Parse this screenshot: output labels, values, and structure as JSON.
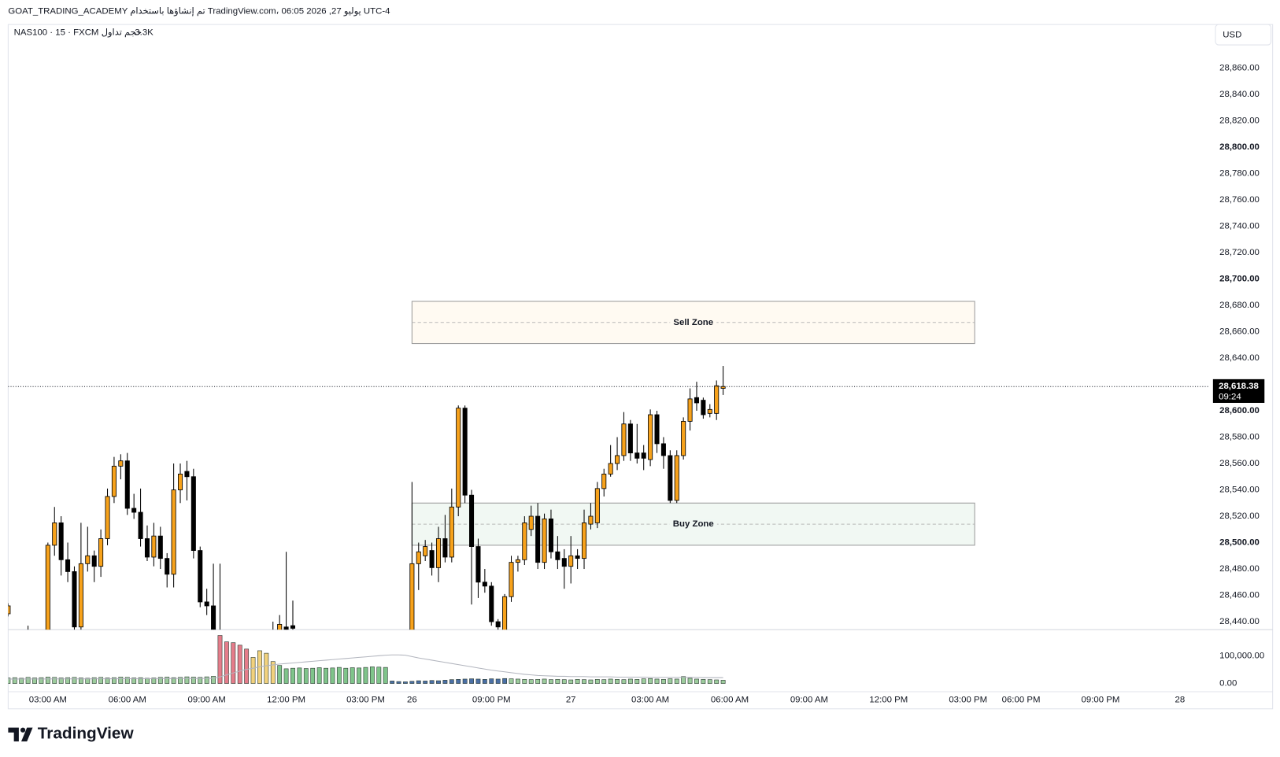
{
  "chart_data": {
    "type": "candlestick",
    "attribution": "GOAT_TRADING_ACADEMY تم إنشاؤها باستخدام TradingView.com، 06:05 2026 ,27 يوليو UTC-4",
    "symbol": "NAS100 · 15 · FXCM",
    "volume_label": "حجم تداول",
    "volume_value": "3.3K",
    "currency": "USD",
    "brand": "TradingView",
    "up_color": "#f7a21b",
    "down_color": "#000000",
    "grid": false,
    "xlim": [
      0,
      181.5
    ],
    "ylim": [
      28434,
      28893
    ],
    "yticks": [
      {
        "value": 28440,
        "label": "28,440.00"
      },
      {
        "value": 28460,
        "label": "28,460.00"
      },
      {
        "value": 28480,
        "label": "28,480.00"
      },
      {
        "value": 28500,
        "label": "28,500.00"
      },
      {
        "value": 28520,
        "label": "28,520.00"
      },
      {
        "value": 28540,
        "label": "28,540.00"
      },
      {
        "value": 28560,
        "label": "28,560.00"
      },
      {
        "value": 28580,
        "label": "28,580.00"
      },
      {
        "value": 28600,
        "label": "28,600.00"
      },
      {
        "value": 28640,
        "label": "28,640.00"
      },
      {
        "value": 28660,
        "label": "28,660.00"
      },
      {
        "value": 28680,
        "label": "28,680.00"
      },
      {
        "value": 28700,
        "label": "28,700.00"
      },
      {
        "value": 28720,
        "label": "28,720.00"
      },
      {
        "value": 28740,
        "label": "28,740.00"
      },
      {
        "value": 28760,
        "label": "28,760.00"
      },
      {
        "value": 28780,
        "label": "28,780.00"
      },
      {
        "value": 28800,
        "label": "28,800.00"
      },
      {
        "value": 28820,
        "label": "28,820.00"
      },
      {
        "value": 28840,
        "label": "28,840.00"
      },
      {
        "value": 28860,
        "label": "28,860.00"
      }
    ],
    "xticks": [
      {
        "value": 6,
        "label": "03:00 AM"
      },
      {
        "value": 18,
        "label": "06:00 AM"
      },
      {
        "value": 30,
        "label": "09:00 AM"
      },
      {
        "value": 42,
        "label": "12:00 PM"
      },
      {
        "value": 54,
        "label": "03:00 PM"
      },
      {
        "value": 61,
        "label": "26"
      },
      {
        "value": 73,
        "label": "09:00 PM"
      },
      {
        "value": 85,
        "label": "27"
      },
      {
        "value": 97,
        "label": "03:00 AM"
      },
      {
        "value": 109,
        "label": "06:00 AM"
      },
      {
        "value": 121,
        "label": "09:00 AM"
      },
      {
        "value": 133,
        "label": "12:00 PM"
      },
      {
        "value": 145,
        "label": "03:00 PM"
      },
      {
        "value": 153,
        "label": "06:00 PM"
      },
      {
        "value": 165,
        "label": "09:00 PM"
      },
      {
        "value": 177,
        "label": "28"
      }
    ],
    "open": [
      28446,
      null,
      null,
      28432,
      null,
      null,
      28420,
      28498,
      28515,
      28487,
      28478,
      28436,
      28484,
      28490,
      28482,
      28503,
      28535,
      28558,
      28562,
      28526,
      28523,
      28503,
      28489,
      28505,
      28488,
      28476,
      28540,
      28554,
      28550,
      28494,
      28455,
      28452,
      28430,
      null,
      null,
      null,
      null,
      null,
      null,
      null,
      28430,
      28432,
      28436,
      28437,
      null,
      null,
      null,
      null,
      null,
      null,
      null,
      null,
      null,
      null,
      null,
      null,
      null,
      null,
      null,
      null,
      null,
      28425,
      28484,
      28490,
      28494,
      28481,
      28503,
      28489,
      28527,
      28602,
      28536,
      28497,
      28470,
      28467,
      28440,
      28432,
      28459,
      28485,
      28487,
      28510,
      28520,
      28485,
      28518,
      28493,
      28488,
      28482,
      28490,
      28488,
      28514,
      28515,
      28541,
      28552,
      28560,
      28566,
      28590,
      28568,
      28568,
      28563,
      28597,
      28575,
      28566,
      28532,
      28566,
      28592,
      28610,
      28608,
      28598,
      28598,
      28617
    ],
    "high": [
      28454,
      null,
      null,
      28437,
      null,
      null,
      28500,
      28527,
      28520,
      28500,
      28482,
      28515,
      28512,
      28494,
      28510,
      28541,
      28565,
      28567,
      28568,
      28537,
      28541,
      28513,
      28515,
      28512,
      28492,
      28560,
      28560,
      28562,
      28556,
      28497,
      28465,
      28484,
      28484,
      null,
      null,
      null,
      null,
      null,
      null,
      null,
      28440,
      28445,
      28493,
      28456,
      null,
      null,
      null,
      null,
      null,
      null,
      null,
      null,
      null,
      null,
      null,
      null,
      null,
      null,
      null,
      null,
      null,
      28546,
      28500,
      28502,
      28500,
      28512,
      28521,
      28541,
      28604,
      28604,
      28540,
      28503,
      28480,
      28470,
      28442,
      28461,
      28490,
      28490,
      28520,
      28528,
      28530,
      28522,
      28525,
      28505,
      28495,
      28505,
      28495,
      28525,
      28530,
      28546,
      28556,
      28574,
      28580,
      28599,
      28593,
      28590,
      28574,
      28601,
      28600,
      28580,
      28570,
      28570,
      28595,
      28617,
      28622,
      28610,
      28605,
      28623,
      28634
    ],
    "low": [
      28444,
      null,
      null,
      28420,
      null,
      null,
      28415,
      28490,
      28475,
      28470,
      28432,
      28432,
      28478,
      28470,
      28474,
      28498,
      28530,
      28548,
      28521,
      28518,
      28497,
      28486,
      28482,
      28480,
      28466,
      28466,
      28530,
      28532,
      28488,
      28451,
      28445,
      28420,
      28410,
      null,
      null,
      null,
      null,
      null,
      null,
      null,
      28415,
      28425,
      28420,
      28425,
      null,
      null,
      null,
      null,
      null,
      null,
      null,
      null,
      null,
      null,
      null,
      null,
      null,
      null,
      null,
      null,
      null,
      28420,
      28464,
      28486,
      28475,
      28470,
      28485,
      28485,
      28520,
      28530,
      28453,
      28458,
      28462,
      28437,
      28432,
      28428,
      28455,
      28478,
      28483,
      28505,
      28480,
      28480,
      28488,
      28480,
      28465,
      28469,
      28480,
      28480,
      28510,
      28511,
      28535,
      28550,
      28555,
      28562,
      28562,
      28560,
      28555,
      28558,
      28568,
      28556,
      28530,
      28530,
      28563,
      28585,
      28600,
      28594,
      28595,
      28593,
      28612
    ],
    "close": [
      28452,
      null,
      null,
      28425,
      null,
      null,
      28498,
      28515,
      28487,
      28478,
      28436,
      28484,
      28490,
      28482,
      28503,
      28535,
      28558,
      28562,
      28526,
      28523,
      28503,
      28489,
      28505,
      28488,
      28476,
      28540,
      28552,
      28550,
      28494,
      28455,
      28452,
      28428,
      28420,
      null,
      null,
      null,
      null,
      null,
      null,
      null,
      28425,
      28438,
      28434,
      28435,
      null,
      null,
      null,
      null,
      null,
      null,
      null,
      null,
      null,
      null,
      null,
      null,
      null,
      null,
      null,
      null,
      null,
      28484,
      28493,
      28497,
      28481,
      28503,
      28489,
      28527,
      28602,
      28536,
      28497,
      28470,
      28467,
      28440,
      28436,
      28459,
      28485,
      28487,
      28515,
      28520,
      28485,
      28518,
      28493,
      28487,
      28482,
      28490,
      28488,
      28515,
      28520,
      28541,
      28552,
      28560,
      28566,
      28590,
      28568,
      28564,
      28564,
      28597,
      28575,
      28566,
      28532,
      28566,
      28592,
      28609,
      28606,
      28597,
      28601,
      28619,
      28618.38
    ],
    "last_price": {
      "value": 28618.38,
      "label": "28,618.38",
      "countdown": "09:24"
    },
    "zones": [
      {
        "label": "Sell Zone",
        "top": 28683,
        "bottom": 28651,
        "start": 61,
        "end": 146,
        "fill": "#fffaf2"
      },
      {
        "label": "Buy Zone",
        "top": 28530,
        "bottom": 28498,
        "start": 61,
        "end": 146,
        "fill": "#f1f8f3"
      }
    ],
    "volume_ylim": [
      0,
      194000
    ],
    "volume_yticks": [
      {
        "value": 100000,
        "label": "100,000.00"
      },
      {
        "value": 0,
        "label": "0.00"
      }
    ],
    "volume": [
      20000,
      21000,
      19000,
      22000,
      20000,
      21000,
      23000,
      22000,
      20000,
      21000,
      22000,
      20000,
      19000,
      21000,
      22000,
      20000,
      21000,
      23000,
      22000,
      20000,
      21000,
      19000,
      20000,
      22000,
      23000,
      21000,
      22000,
      24000,
      23000,
      22000,
      24000,
      26000,
      173000,
      150000,
      147000,
      138000,
      124000,
      94000,
      118000,
      109000,
      79000,
      65000,
      53000,
      55000,
      56000,
      54000,
      55000,
      57000,
      55000,
      56000,
      58000,
      55000,
      57000,
      56000,
      58000,
      60000,
      59000,
      58000,
      9000,
      7000,
      6000,
      8000,
      10000,
      9000,
      11000,
      10000,
      12000,
      14000,
      15000,
      16000,
      17000,
      16000,
      15000,
      17000,
      16000,
      18000,
      17000,
      16000,
      15000,
      14000,
      15000,
      16000,
      14000,
      15000,
      14000,
      13000,
      15000,
      14000,
      13000,
      15000,
      14000,
      16000,
      15000,
      14000,
      16000,
      15000,
      17000,
      18000,
      16000,
      15000,
      17000,
      16000,
      25000,
      19000,
      16000,
      15000,
      14000,
      13000,
      12000
    ],
    "volume_colors": [
      "#9ccc9c",
      "#9ccc9c",
      "#9ccc9c",
      "#9ccc9c",
      "#9ccc9c",
      "#9ccc9c",
      "#9ccc9c",
      "#9ccc9c",
      "#9ccc9c",
      "#9ccc9c",
      "#9ccc9c",
      "#9ccc9c",
      "#9ccc9c",
      "#9ccc9c",
      "#9ccc9c",
      "#9ccc9c",
      "#9ccc9c",
      "#9ccc9c",
      "#9ccc9c",
      "#9ccc9c",
      "#9ccc9c",
      "#9ccc9c",
      "#9ccc9c",
      "#9ccc9c",
      "#9ccc9c",
      "#9ccc9c",
      "#9ccc9c",
      "#9ccc9c",
      "#9ccc9c",
      "#9ccc9c",
      "#9ccc9c",
      "#9ccc9c",
      "#e57c8a",
      "#e57c8a",
      "#e57c8a",
      "#e57c8a",
      "#e57c8a",
      "#f2d27d",
      "#f2d27d",
      "#f2d27d",
      "#f2d27d",
      "#7fc48a",
      "#7fc48a",
      "#7fc48a",
      "#7fc48a",
      "#7fc48a",
      "#7fc48a",
      "#7fc48a",
      "#7fc48a",
      "#7fc48a",
      "#7fc48a",
      "#7fc48a",
      "#7fc48a",
      "#7fc48a",
      "#7fc48a",
      "#7fc48a",
      "#7fc48a",
      "#7fc48a",
      "#4a6fa5",
      "#4a6fa5",
      "#4a6fa5",
      "#4a6fa5",
      "#4a6fa5",
      "#4a6fa5",
      "#4a6fa5",
      "#4a6fa5",
      "#4a6fa5",
      "#4a6fa5",
      "#4a6fa5",
      "#4a6fa5",
      "#4a6fa5",
      "#4a6fa5",
      "#4a6fa5",
      "#4a6fa5",
      "#4a6fa5",
      "#4a6fa5",
      "#9ccc9c",
      "#9ccc9c",
      "#9ccc9c",
      "#9ccc9c",
      "#9ccc9c",
      "#9ccc9c",
      "#9ccc9c",
      "#9ccc9c",
      "#9ccc9c",
      "#9ccc9c",
      "#9ccc9c",
      "#9ccc9c",
      "#9ccc9c",
      "#9ccc9c",
      "#9ccc9c",
      "#9ccc9c",
      "#9ccc9c",
      "#9ccc9c",
      "#9ccc9c",
      "#9ccc9c",
      "#9ccc9c",
      "#9ccc9c",
      "#9ccc9c",
      "#9ccc9c",
      "#9ccc9c",
      "#9ccc9c",
      "#9ccc9c",
      "#9ccc9c",
      "#9ccc9c",
      "#9ccc9c",
      "#9ccc9c",
      "#9ccc9c",
      "#9ccc9c"
    ],
    "volume_ma": [
      16000,
      16000,
      16100,
      16200,
      16200,
      16300,
      16400,
      16500,
      16500,
      16600,
      16700,
      16800,
      16800,
      16900,
      17000,
      17100,
      17100,
      17200,
      17300,
      17400,
      17400,
      17500,
      17600,
      17700,
      17800,
      17800,
      17900,
      18000,
      18100,
      18200,
      18300,
      18400,
      24000,
      31000,
      38000,
      45000,
      51000,
      55000,
      60000,
      64000,
      67000,
      70000,
      72000,
      74000,
      76000,
      78000,
      80000,
      82000,
      84000,
      86000,
      88000,
      90000,
      92000,
      94000,
      96000,
      98000,
      100000,
      102000,
      103000,
      103000,
      102000,
      97000,
      92000,
      88000,
      84000,
      80000,
      76000,
      72000,
      68000,
      64000,
      60000,
      56000,
      52000,
      48000,
      45000,
      42000,
      39000,
      36000,
      33000,
      31000,
      29000,
      28000,
      27000,
      26000,
      26000,
      25000,
      25000,
      25000,
      24000,
      24000,
      24000,
      24000,
      23000,
      23000,
      23000,
      23000,
      23000,
      22000,
      22000,
      22000,
      22000,
      22000,
      22000,
      22000,
      22000,
      21000,
      21000,
      21000,
      21000
    ]
  }
}
